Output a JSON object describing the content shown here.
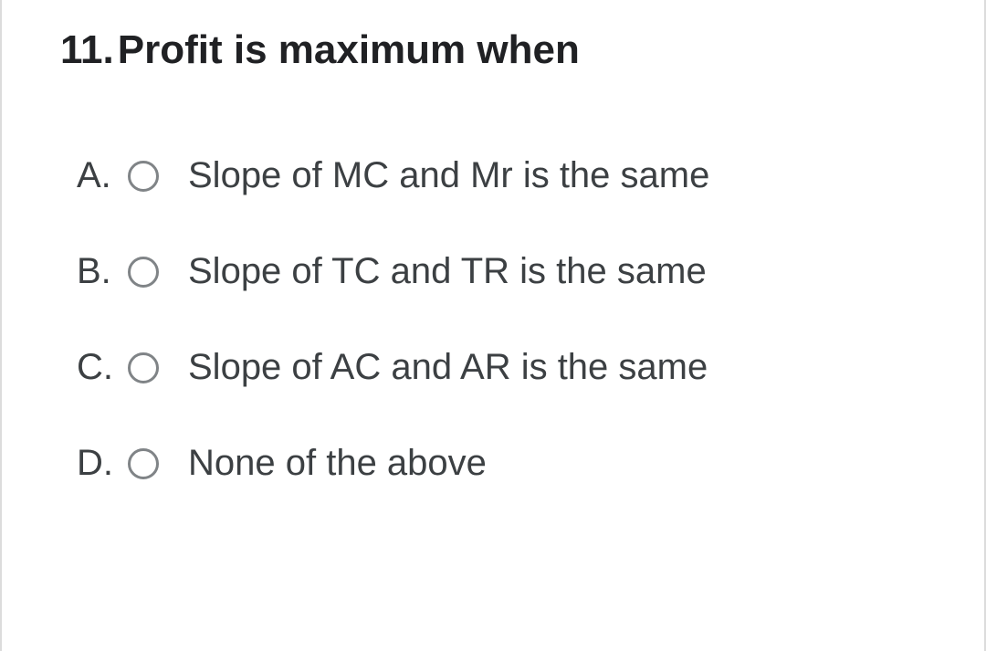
{
  "question": {
    "number": "11.",
    "text": "Profit is maximum when"
  },
  "options": [
    {
      "letter": "A.",
      "text": "Slope of MC and Mr is the same"
    },
    {
      "letter": "B.",
      "text": "Slope of TC and TR is the same"
    },
    {
      "letter": "C.",
      "text": "Slope of AC and AR is the same"
    },
    {
      "letter": "D.",
      "text": "None of the above"
    }
  ],
  "colors": {
    "text_primary": "#202124",
    "text_secondary": "#3c4043",
    "radio_border": "#808487",
    "side_border": "#dcdcdc",
    "background": "#ffffff"
  },
  "typography": {
    "question_fontsize": 44,
    "question_fontweight": 700,
    "option_fontsize": 40,
    "option_fontweight": 500
  }
}
